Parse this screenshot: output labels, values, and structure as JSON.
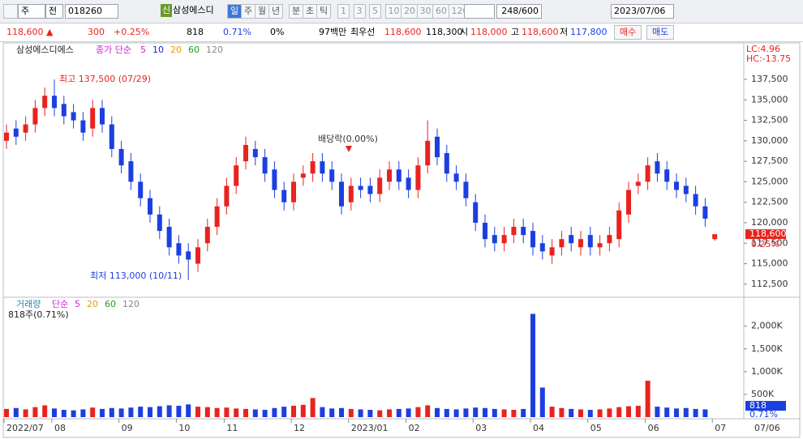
{
  "toolbar": {
    "period_unit": "주",
    "compare": "전",
    "code": "018260",
    "badge": "신",
    "name": "삼성에스디",
    "periods": [
      "일",
      "주",
      "월",
      "년",
      "분",
      "초",
      "틱"
    ],
    "intervals": [
      "1",
      "3",
      "5",
      "10",
      "20",
      "30",
      "60",
      "120"
    ],
    "count": "248/600",
    "date": "2023/07/06"
  },
  "info_bar": {
    "price": "118,600 ▲",
    "change": "300",
    "change_rate": "+0.25%",
    "volume": "818",
    "volume_rate": "0.71%",
    "turnover_rate": "0%",
    "amount": "97백만",
    "best_label": "최우선",
    "best_ask": "118,600",
    "best_bid": "118,300",
    "open_label": "시",
    "open": "118,000",
    "high_label": "고",
    "high": "118,600",
    "low_label": "저",
    "low": "117,800",
    "buy": "매수",
    "sell": "매도"
  },
  "chart_data": [
    {
      "type": "candlestick",
      "title": "삼성에스디에스",
      "legend_label": "종가 단순",
      "ma_periods": [
        "5",
        "10",
        "20",
        "60",
        "120"
      ],
      "ma_colors": [
        "#d61fd6",
        "#2020d0",
        "#e0a000",
        "#20a020",
        "#888888"
      ],
      "lc": "LC:4.96",
      "hc": "HC:-13.75",
      "max_label": "최고 137,500 (07/29)",
      "min_label": "최저 113,000 (10/11)",
      "dividend_label": "배당락(0.00%)",
      "last_price_label": "118,600",
      "last_change_label": "0.25%",
      "last_date_label": "07/06",
      "up_color": "#e8231f",
      "down_color": "#1c3fe0",
      "categories": [
        "2022/07",
        null,
        null,
        null,
        null,
        "08",
        null,
        null,
        null,
        null,
        null,
        null,
        "09",
        null,
        null,
        null,
        null,
        null,
        "10",
        null,
        null,
        null,
        null,
        "11",
        null,
        null,
        null,
        null,
        null,
        null,
        "12",
        null,
        null,
        null,
        null,
        null,
        "2023/01",
        null,
        null,
        null,
        null,
        null,
        "02",
        null,
        null,
        null,
        null,
        null,
        null,
        "03",
        null,
        null,
        null,
        null,
        null,
        "04",
        null,
        null,
        null,
        null,
        null,
        "05",
        null,
        null,
        null,
        null,
        null,
        "06",
        null,
        null,
        null,
        null,
        null,
        null,
        "07"
      ],
      "open": [
        130000,
        131500,
        131000,
        132000,
        134000,
        135500,
        134500,
        133500,
        132500,
        131500,
        134000,
        132000,
        129000,
        127500,
        125000,
        123000,
        121000,
        119500,
        117500,
        116500,
        115000,
        117500,
        119500,
        122000,
        124500,
        127500,
        129000,
        128000,
        126500,
        124000,
        122500,
        125500,
        126000,
        127500,
        126500,
        125000,
        122500,
        124500,
        124500,
        123500,
        125000,
        126500,
        125500,
        124000,
        127000,
        130500,
        128500,
        126000,
        125000,
        122500,
        120000,
        118500,
        117500,
        118500,
        119500,
        119000,
        117500,
        116000,
        117000,
        118500,
        117000,
        118500,
        117000,
        117500,
        118000,
        121000,
        124500,
        125000,
        127500,
        126500,
        125000,
        124500,
        123500,
        122000,
        118000
      ],
      "high": [
        132000,
        132500,
        133000,
        135000,
        136500,
        137500,
        135500,
        134500,
        133500,
        135000,
        135000,
        133000,
        130000,
        128500,
        126000,
        124000,
        122000,
        120500,
        118500,
        117500,
        118000,
        120500,
        123000,
        125500,
        128000,
        130500,
        130000,
        129000,
        127500,
        125000,
        126000,
        127000,
        128500,
        128500,
        127500,
        126000,
        125500,
        125500,
        125500,
        126500,
        127500,
        127500,
        126500,
        128000,
        132500,
        131500,
        129500,
        127000,
        126000,
        123500,
        121000,
        119500,
        119500,
        120500,
        120500,
        120000,
        118500,
        118000,
        119000,
        119500,
        119000,
        119500,
        118500,
        119500,
        122500,
        125000,
        126000,
        128000,
        128500,
        127500,
        126000,
        125500,
        124500,
        123000,
        118600
      ],
      "low": [
        129000,
        129500,
        130000,
        131000,
        133000,
        133000,
        132000,
        131500,
        130000,
        130500,
        131000,
        128000,
        126000,
        124000,
        122000,
        120000,
        118000,
        116000,
        115000,
        113000,
        114000,
        116500,
        118500,
        121000,
        123500,
        126500,
        127000,
        125000,
        123000,
        121500,
        121500,
        124500,
        125000,
        125000,
        124000,
        121000,
        121500,
        123000,
        122500,
        122500,
        124000,
        124000,
        123000,
        123000,
        126000,
        127000,
        125000,
        124000,
        122000,
        119000,
        117000,
        116500,
        116500,
        117500,
        117500,
        116000,
        115500,
        115000,
        116000,
        116500,
        116000,
        116000,
        116000,
        116500,
        117000,
        120000,
        123500,
        124000,
        125000,
        124000,
        123000,
        122500,
        121000,
        119500,
        117800
      ],
      "close": [
        131000,
        130500,
        132000,
        134000,
        135500,
        134000,
        133000,
        132500,
        131000,
        134000,
        132000,
        129000,
        127000,
        125000,
        123000,
        121000,
        119000,
        117000,
        116000,
        115500,
        117000,
        119500,
        122000,
        124500,
        127000,
        129500,
        128000,
        126000,
        124000,
        122500,
        125000,
        126000,
        127500,
        126000,
        125000,
        122000,
        124500,
        124000,
        123500,
        125500,
        126500,
        125000,
        124000,
        127000,
        130000,
        128000,
        126000,
        125000,
        123000,
        120000,
        118000,
        117500,
        118500,
        119500,
        118500,
        117000,
        116500,
        117000,
        118000,
        117500,
        118000,
        117000,
        117500,
        118500,
        121500,
        124000,
        125000,
        127000,
        126000,
        125000,
        124000,
        123500,
        122000,
        120500,
        118600
      ],
      "ylim": [
        111100,
        141750
      ],
      "yticks": [
        {
          "value": 112500,
          "label": "112,500"
        },
        {
          "value": 115000,
          "label": "115,000"
        },
        {
          "value": 117500,
          "label": "117,500"
        },
        {
          "value": 120000,
          "label": "120,000"
        },
        {
          "value": 122500,
          "label": "122,500"
        },
        {
          "value": 125000,
          "label": "125,000"
        },
        {
          "value": 127500,
          "label": "127,500"
        },
        {
          "value": 130000,
          "label": "130,000"
        },
        {
          "value": 132500,
          "label": "132,500"
        },
        {
          "value": 135000,
          "label": "135,000"
        },
        {
          "value": 137500,
          "label": "137,500"
        }
      ]
    },
    {
      "type": "bar",
      "title": "거래량",
      "legend_label": "단순",
      "ma_periods": [
        "5",
        "20",
        "60",
        "120"
      ],
      "ma_colors": [
        "#d61fd6",
        "#e0a000",
        "#20a020",
        "#888888"
      ],
      "status_label": "818주(0.71%)",
      "last_label": "818",
      "last_change_label": "0.71%",
      "values": [
        180000,
        200000,
        170000,
        220000,
        260000,
        190000,
        160000,
        150000,
        170000,
        210000,
        180000,
        200000,
        190000,
        210000,
        230000,
        220000,
        240000,
        260000,
        250000,
        280000,
        230000,
        220000,
        200000,
        210000,
        190000,
        180000,
        170000,
        160000,
        200000,
        230000,
        250000,
        270000,
        420000,
        220000,
        190000,
        200000,
        180000,
        170000,
        160000,
        150000,
        170000,
        180000,
        190000,
        220000,
        260000,
        200000,
        180000,
        170000,
        190000,
        210000,
        200000,
        180000,
        170000,
        160000,
        180000,
        2270000,
        650000,
        230000,
        200000,
        180000,
        170000,
        160000,
        170000,
        190000,
        220000,
        240000,
        250000,
        800000,
        230000,
        210000,
        190000,
        200000,
        180000,
        170000,
        818
      ],
      "ylim": [
        0,
        2600000
      ],
      "yticks": [
        {
          "value": 500000,
          "label": "500K"
        },
        {
          "value": 1000000,
          "label": "1,000K"
        },
        {
          "value": 1500000,
          "label": "1,500K"
        },
        {
          "value": 2000000,
          "label": "2,000K"
        }
      ]
    }
  ]
}
